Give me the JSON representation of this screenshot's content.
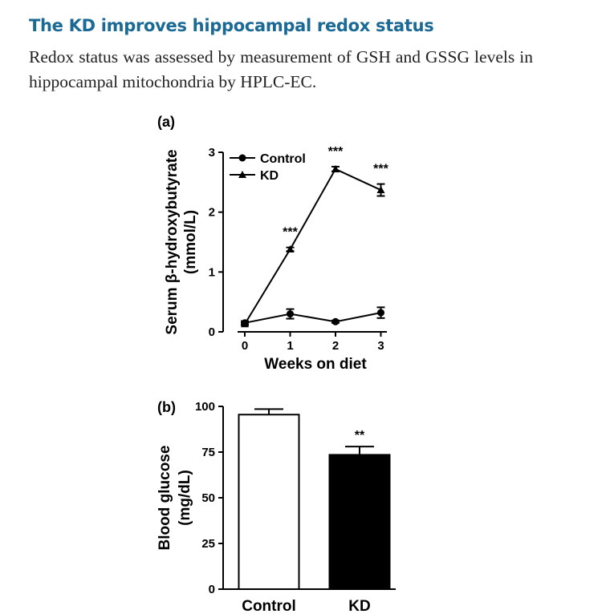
{
  "heading": "The KD improves hippocampal redox status",
  "paragraph": "Redox status was assessed by measurement of GSH and GSSG levels in hippocampal mitochondria by HPLC-EC.",
  "chart_data": [
    {
      "panel_label": "(a)",
      "type": "line",
      "x": [
        0,
        1,
        2,
        3
      ],
      "x_ticks": [
        "0",
        "1",
        "2",
        "3"
      ],
      "xlabel": "Weeks on diet",
      "ylabel_line1": "Serum β-hydroxybutyrate",
      "ylabel_line2": "(mmol/L)",
      "ylim": [
        0,
        3
      ],
      "y_ticks": [
        "0",
        "1",
        "2",
        "3"
      ],
      "legend_position": "top-left",
      "series": [
        {
          "name": "Control",
          "marker": "circle",
          "values": [
            0.15,
            0.3,
            0.17,
            0.32
          ],
          "errors": [
            0.03,
            0.08,
            0.02,
            0.09
          ]
        },
        {
          "name": "KD",
          "marker": "triangle",
          "values": [
            0.13,
            1.38,
            2.72,
            2.37
          ],
          "errors": [
            0.02,
            0.03,
            0.04,
            0.1
          ]
        }
      ],
      "significance": [
        {
          "x": 1,
          "text": "***"
        },
        {
          "x": 2,
          "text": "***"
        },
        {
          "x": 3,
          "text": "***"
        }
      ]
    },
    {
      "panel_label": "(b)",
      "type": "bar",
      "categories": [
        "Control",
        "KD"
      ],
      "values": [
        95.5,
        73.5
      ],
      "errors": [
        3.0,
        4.5
      ],
      "bar_colors": [
        "#ffffff",
        "#000000"
      ],
      "ylabel_line1": "Blood glucose",
      "ylabel_line2": "(mg/dL)",
      "ylim": [
        0,
        100
      ],
      "y_ticks": [
        "0",
        "25",
        "50",
        "75",
        "100"
      ],
      "significance": [
        {
          "category": "KD",
          "text": "**"
        }
      ]
    }
  ]
}
